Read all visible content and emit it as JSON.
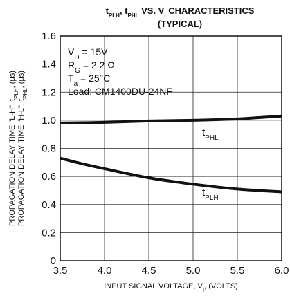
{
  "chart_data": {
    "type": "line",
    "title_line1": {
      "p1": "t",
      "s1": "PLH",
      "p2": ", t",
      "s2": "PHL",
      "p3": " VS. V",
      "s3": "I",
      "p4": " CHARACTERISTICS"
    },
    "title_line2": "(TYPICAL)",
    "xlabel": {
      "p1": "INPUT SIGNAL VOLTAGE, V",
      "s1": "I",
      "p2": ", (VOLTS)"
    },
    "ylabel_line1": {
      "p1": "PROPAGATION DELAY TIME \"L-H\", t",
      "s1": "PLH",
      "p2": ", (μs)"
    },
    "ylabel_line2": {
      "p1": "PROPAGATION DELAY TIME \"H-L\", t",
      "s1": "PHL",
      "p2": ", (μs)"
    },
    "xlim": [
      3.5,
      6.0
    ],
    "ylim": [
      0,
      1.6
    ],
    "x_ticks": [
      "3.5",
      "4.0",
      "4.5",
      "5.0",
      "5.5",
      "6.0"
    ],
    "y_ticks": [
      "0",
      "0.2",
      "0.4",
      "0.6",
      "0.8",
      "1.0",
      "1.2",
      "1.4",
      "1.6"
    ],
    "grid": true,
    "conditions": [
      {
        "p1": "V",
        "s1": "D",
        "p2": " = 15V"
      },
      {
        "p1": "R",
        "s1": "G",
        "p2": " = 2.2 Ω"
      },
      {
        "p1": "T",
        "s1": "a",
        "p2": " = 25°C"
      },
      {
        "p1": "Load: CM1400DU-24NF",
        "s1": "",
        "p2": ""
      }
    ],
    "series": [
      {
        "name": {
          "p1": "t",
          "s1": "PHL"
        },
        "x": [
          3.5,
          4.0,
          4.5,
          5.0,
          5.5,
          6.0
        ],
        "y": [
          0.98,
          0.985,
          0.995,
          1.0,
          1.01,
          1.03
        ]
      },
      {
        "name": {
          "p1": "t",
          "s1": "PLH"
        },
        "x": [
          3.5,
          3.75,
          4.0,
          4.5,
          5.0,
          5.5,
          6.0
        ],
        "y": [
          0.73,
          0.69,
          0.655,
          0.59,
          0.545,
          0.51,
          0.49
        ]
      }
    ]
  }
}
